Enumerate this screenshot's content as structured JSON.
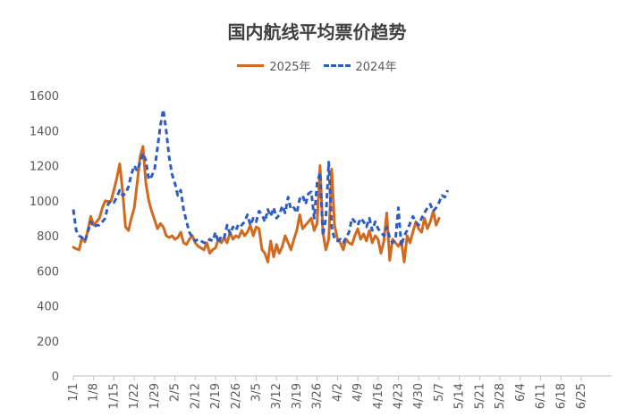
{
  "chart_data": {
    "type": "line",
    "title": "国内航线平均票价趋势",
    "ylim": [
      0,
      1600
    ],
    "yticks": [
      0,
      200,
      400,
      600,
      800,
      1000,
      1200,
      1400,
      1600
    ],
    "x_ticks": [
      "1/1",
      "1/8",
      "1/15",
      "1/22",
      "1/29",
      "2/5",
      "2/12",
      "2/19",
      "2/26",
      "3/5",
      "3/12",
      "3/19",
      "3/26",
      "4/2",
      "4/9",
      "4/16",
      "4/23",
      "4/30",
      "5/7",
      "5/14",
      "5/21",
      "5/28",
      "6/4",
      "6/11",
      "6/18",
      "6/25"
    ],
    "grid": false,
    "legend": "top-center",
    "series": [
      {
        "name": "2025年",
        "color": "#D2691E",
        "style": "solid",
        "points": [
          [
            0,
            735
          ],
          [
            1,
            725
          ],
          [
            2,
            720
          ],
          [
            3,
            790
          ],
          [
            4,
            765
          ],
          [
            5,
            830
          ],
          [
            6,
            910
          ],
          [
            7,
            860
          ],
          [
            8,
            880
          ],
          [
            9,
            900
          ],
          [
            10,
            960
          ],
          [
            11,
            1000
          ],
          [
            12,
            995
          ],
          [
            13,
            1000
          ],
          [
            14,
            1060
          ],
          [
            15,
            1130
          ],
          [
            16,
            1210
          ],
          [
            17,
            1050
          ],
          [
            18,
            850
          ],
          [
            19,
            830
          ],
          [
            20,
            900
          ],
          [
            21,
            960
          ],
          [
            22,
            1100
          ],
          [
            23,
            1250
          ],
          [
            24,
            1310
          ],
          [
            25,
            1100
          ],
          [
            26,
            1000
          ],
          [
            27,
            940
          ],
          [
            28,
            890
          ],
          [
            29,
            840
          ],
          [
            30,
            870
          ],
          [
            31,
            850
          ],
          [
            32,
            800
          ],
          [
            33,
            790
          ],
          [
            34,
            800
          ],
          [
            35,
            780
          ],
          [
            36,
            790
          ],
          [
            37,
            820
          ],
          [
            38,
            760
          ],
          [
            39,
            750
          ],
          [
            40,
            780
          ],
          [
            41,
            800
          ],
          [
            42,
            760
          ],
          [
            43,
            740
          ],
          [
            44,
            730
          ],
          [
            45,
            720
          ],
          [
            46,
            760
          ],
          [
            47,
            700
          ],
          [
            48,
            720
          ],
          [
            49,
            730
          ],
          [
            50,
            780
          ],
          [
            51,
            760
          ],
          [
            52,
            790
          ],
          [
            53,
            760
          ],
          [
            54,
            820
          ],
          [
            55,
            780
          ],
          [
            56,
            800
          ],
          [
            57,
            790
          ],
          [
            58,
            830
          ],
          [
            59,
            800
          ],
          [
            60,
            820
          ],
          [
            61,
            860
          ],
          [
            62,
            800
          ],
          [
            63,
            850
          ],
          [
            64,
            840
          ],
          [
            65,
            720
          ],
          [
            66,
            700
          ],
          [
            67,
            650
          ],
          [
            68,
            770
          ],
          [
            69,
            680
          ],
          [
            70,
            750
          ],
          [
            71,
            700
          ],
          [
            72,
            740
          ],
          [
            73,
            800
          ],
          [
            74,
            760
          ],
          [
            75,
            720
          ],
          [
            76,
            780
          ],
          [
            77,
            830
          ],
          [
            78,
            920
          ],
          [
            79,
            840
          ],
          [
            80,
            860
          ],
          [
            81,
            880
          ],
          [
            82,
            900
          ],
          [
            83,
            830
          ],
          [
            84,
            870
          ],
          [
            85,
            1200
          ],
          [
            86,
            820
          ],
          [
            87,
            720
          ],
          [
            88,
            780
          ],
          [
            89,
            1180
          ],
          [
            90,
            860
          ],
          [
            91,
            780
          ],
          [
            92,
            760
          ],
          [
            93,
            720
          ],
          [
            94,
            780
          ],
          [
            95,
            760
          ],
          [
            96,
            750
          ],
          [
            97,
            800
          ],
          [
            98,
            840
          ],
          [
            99,
            780
          ],
          [
            100,
            810
          ],
          [
            101,
            770
          ],
          [
            102,
            830
          ],
          [
            103,
            760
          ],
          [
            104,
            800
          ],
          [
            105,
            780
          ],
          [
            106,
            700
          ],
          [
            107,
            770
          ],
          [
            108,
            930
          ],
          [
            109,
            660
          ],
          [
            110,
            780
          ],
          [
            111,
            760
          ],
          [
            112,
            740
          ],
          [
            113,
            770
          ],
          [
            114,
            650
          ],
          [
            115,
            800
          ],
          [
            116,
            760
          ],
          [
            117,
            820
          ],
          [
            118,
            880
          ],
          [
            119,
            840
          ],
          [
            120,
            820
          ],
          [
            121,
            900
          ],
          [
            122,
            840
          ],
          [
            123,
            880
          ],
          [
            124,
            940
          ],
          [
            125,
            860
          ],
          [
            126,
            900
          ]
        ]
      },
      {
        "name": "2024年",
        "color": "#2E5CC6",
        "style": "dashed",
        "points": [
          [
            0,
            950
          ],
          [
            1,
            830
          ],
          [
            2,
            800
          ],
          [
            3,
            790
          ],
          [
            4,
            770
          ],
          [
            5,
            820
          ],
          [
            6,
            880
          ],
          [
            7,
            850
          ],
          [
            8,
            860
          ],
          [
            9,
            860
          ],
          [
            10,
            880
          ],
          [
            11,
            900
          ],
          [
            12,
            980
          ],
          [
            13,
            1000
          ],
          [
            14,
            990
          ],
          [
            15,
            1020
          ],
          [
            16,
            1060
          ],
          [
            17,
            1030
          ],
          [
            18,
            1040
          ],
          [
            19,
            1080
          ],
          [
            20,
            1150
          ],
          [
            21,
            1200
          ],
          [
            22,
            1170
          ],
          [
            23,
            1220
          ],
          [
            24,
            1270
          ],
          [
            25,
            1230
          ],
          [
            26,
            1120
          ],
          [
            27,
            1140
          ],
          [
            28,
            1180
          ],
          [
            29,
            1300
          ],
          [
            30,
            1430
          ],
          [
            31,
            1520
          ],
          [
            32,
            1400
          ],
          [
            33,
            1250
          ],
          [
            34,
            1150
          ],
          [
            35,
            1100
          ],
          [
            36,
            1030
          ],
          [
            37,
            1060
          ],
          [
            38,
            950
          ],
          [
            39,
            880
          ],
          [
            40,
            820
          ],
          [
            41,
            790
          ],
          [
            42,
            770
          ],
          [
            43,
            780
          ],
          [
            44,
            770
          ],
          [
            45,
            760
          ],
          [
            46,
            760
          ],
          [
            47,
            780
          ],
          [
            48,
            770
          ],
          [
            49,
            820
          ],
          [
            50,
            760
          ],
          [
            51,
            800
          ],
          [
            52,
            790
          ],
          [
            53,
            860
          ],
          [
            54,
            810
          ],
          [
            55,
            850
          ],
          [
            56,
            830
          ],
          [
            57,
            870
          ],
          [
            58,
            860
          ],
          [
            59,
            880
          ],
          [
            60,
            920
          ],
          [
            61,
            860
          ],
          [
            62,
            900
          ],
          [
            63,
            880
          ],
          [
            64,
            940
          ],
          [
            65,
            920
          ],
          [
            66,
            880
          ],
          [
            67,
            950
          ],
          [
            68,
            910
          ],
          [
            69,
            960
          ],
          [
            70,
            900
          ],
          [
            71,
            920
          ],
          [
            72,
            970
          ],
          [
            73,
            930
          ],
          [
            74,
            1020
          ],
          [
            75,
            950
          ],
          [
            76,
            960
          ],
          [
            77,
            930
          ],
          [
            78,
            1010
          ],
          [
            79,
            1030
          ],
          [
            80,
            980
          ],
          [
            81,
            1040
          ],
          [
            82,
            1050
          ],
          [
            83,
            900
          ],
          [
            84,
            1100
          ],
          [
            85,
            1160
          ],
          [
            86,
            800
          ],
          [
            87,
            900
          ],
          [
            88,
            1220
          ],
          [
            89,
            850
          ],
          [
            90,
            780
          ],
          [
            91,
            770
          ],
          [
            92,
            780
          ],
          [
            93,
            760
          ],
          [
            94,
            790
          ],
          [
            95,
            820
          ],
          [
            96,
            900
          ],
          [
            97,
            880
          ],
          [
            98,
            860
          ],
          [
            99,
            900
          ],
          [
            100,
            880
          ],
          [
            101,
            850
          ],
          [
            102,
            900
          ],
          [
            103,
            830
          ],
          [
            104,
            880
          ],
          [
            105,
            840
          ],
          [
            106,
            820
          ],
          [
            107,
            800
          ],
          [
            108,
            850
          ],
          [
            109,
            790
          ],
          [
            110,
            760
          ],
          [
            111,
            780
          ],
          [
            112,
            960
          ],
          [
            113,
            740
          ],
          [
            114,
            800
          ],
          [
            115,
            830
          ],
          [
            116,
            870
          ],
          [
            117,
            910
          ],
          [
            118,
            880
          ],
          [
            119,
            860
          ],
          [
            120,
            900
          ],
          [
            121,
            930
          ],
          [
            122,
            960
          ],
          [
            123,
            980
          ],
          [
            124,
            940
          ],
          [
            125,
            960
          ],
          [
            126,
            990
          ],
          [
            127,
            1030
          ],
          [
            128,
            1020
          ],
          [
            129,
            1060
          ]
        ]
      }
    ]
  }
}
